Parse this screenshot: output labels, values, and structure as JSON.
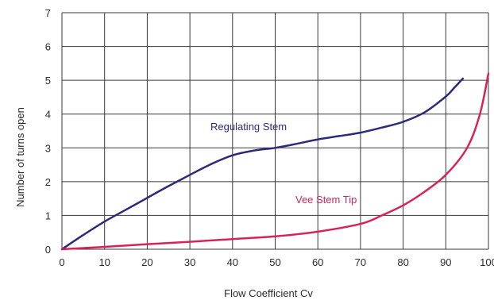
{
  "chart_data": {
    "type": "line",
    "title": "",
    "xlabel": "Flow Coefficient Cv",
    "ylabel": "Number of turns open",
    "xlim": [
      0,
      100
    ],
    "ylim": [
      0,
      7
    ],
    "xticks": [
      0,
      10,
      20,
      30,
      40,
      50,
      60,
      70,
      80,
      90,
      100
    ],
    "yticks": [
      0,
      1,
      2,
      3,
      4,
      5,
      6,
      7
    ],
    "grid": true,
    "series": [
      {
        "name": "Regulating Stem",
        "color": "#2e2a7a",
        "x": [
          0,
          5,
          10,
          15,
          20,
          25,
          30,
          35,
          40,
          45,
          50,
          55,
          60,
          65,
          70,
          75,
          80,
          85,
          90,
          92,
          94
        ],
        "y": [
          0,
          0.42,
          0.82,
          1.17,
          1.52,
          1.87,
          2.2,
          2.52,
          2.78,
          2.92,
          3.0,
          3.12,
          3.25,
          3.35,
          3.45,
          3.6,
          3.77,
          4.05,
          4.52,
          4.78,
          5.05
        ]
      },
      {
        "name": "Vee Stem Tip",
        "color": "#d6245a",
        "x": [
          0,
          10,
          20,
          30,
          40,
          50,
          60,
          70,
          75,
          80,
          85,
          90,
          95,
          98,
          100
        ],
        "y": [
          0,
          0.07,
          0.15,
          0.22,
          0.3,
          0.38,
          0.52,
          0.75,
          1.0,
          1.3,
          1.7,
          2.2,
          3.0,
          4.0,
          5.2
        ]
      }
    ],
    "annotations": [
      {
        "text": "Regulating Stem",
        "series": 0
      },
      {
        "text": "Vee Stem Tip",
        "series": 1
      }
    ]
  }
}
